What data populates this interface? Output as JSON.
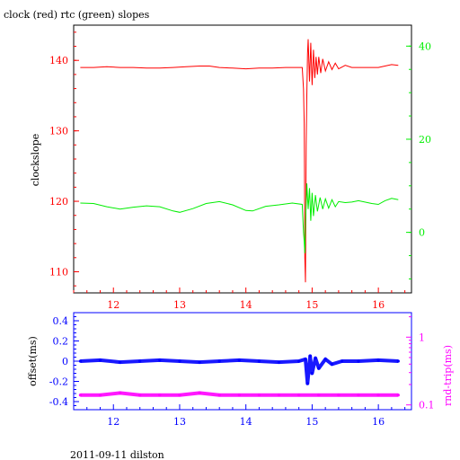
{
  "title": "clock (red) rtc (green) slopes",
  "footer": "2011-09-11 dilston",
  "colors": {
    "red": "#ff0000",
    "green": "#00ee00",
    "blue": "#0000ff",
    "magenta": "#ff00ff",
    "black": "#000000"
  },
  "chart_data": [
    {
      "type": "line",
      "title": "clock (red) rtc (green) slopes",
      "xlabel": "",
      "ylabel": "clockslope",
      "xlim": [
        11.4,
        16.5
      ],
      "x_ticks": [
        12,
        13,
        14,
        15,
        16
      ],
      "y_left": {
        "lim": [
          107,
          145
        ],
        "ticks": [
          110,
          120,
          130,
          140
        ],
        "color": "#ff0000"
      },
      "y_right": {
        "lim": [
          -13,
          44.5
        ],
        "ticks": [
          0,
          20,
          40
        ],
        "color": "#00ee00"
      },
      "series": [
        {
          "axis": "left",
          "color": "#ff0000",
          "points": [
            [
              11.5,
              139.0
            ],
            [
              11.7,
              139.0
            ],
            [
              11.9,
              139.1
            ],
            [
              12.1,
              139.0
            ],
            [
              12.3,
              139.0
            ],
            [
              12.5,
              138.9
            ],
            [
              12.7,
              138.9
            ],
            [
              12.9,
              139.0
            ],
            [
              13.1,
              139.1
            ],
            [
              13.3,
              139.2
            ],
            [
              13.45,
              139.2
            ],
            [
              13.6,
              139.0
            ],
            [
              13.8,
              138.9
            ],
            [
              14.0,
              138.8
            ],
            [
              14.2,
              138.9
            ],
            [
              14.4,
              138.9
            ],
            [
              14.6,
              139.0
            ],
            [
              14.8,
              139.0
            ],
            [
              14.85,
              139.0
            ],
            [
              14.87,
              136.0
            ],
            [
              14.88,
              131.0
            ],
            [
              14.885,
              125.0
            ],
            [
              14.89,
              112.0
            ],
            [
              14.9,
              108.5
            ],
            [
              14.905,
              118.0
            ],
            [
              14.91,
              128.0
            ],
            [
              14.92,
              135.0
            ],
            [
              14.93,
              141.0
            ],
            [
              14.94,
              143.0
            ],
            [
              14.96,
              137.0
            ],
            [
              14.98,
              142.5
            ],
            [
              15.0,
              136.5
            ],
            [
              15.02,
              141.5
            ],
            [
              15.04,
              137.5
            ],
            [
              15.06,
              140.5
            ],
            [
              15.08,
              138.0
            ],
            [
              15.1,
              140.5
            ],
            [
              15.13,
              138.2
            ],
            [
              15.16,
              140.2
            ],
            [
              15.2,
              138.5
            ],
            [
              15.25,
              139.8
            ],
            [
              15.3,
              138.7
            ],
            [
              15.35,
              139.6
            ],
            [
              15.4,
              138.8
            ],
            [
              15.5,
              139.3
            ],
            [
              15.6,
              139.0
            ],
            [
              15.8,
              139.0
            ],
            [
              16.0,
              139.0
            ],
            [
              16.1,
              139.2
            ],
            [
              16.2,
              139.4
            ],
            [
              16.3,
              139.3
            ]
          ]
        },
        {
          "axis": "right",
          "color": "#00ee00",
          "points": [
            [
              11.5,
              6.3
            ],
            [
              11.7,
              6.2
            ],
            [
              11.9,
              5.5
            ],
            [
              12.1,
              5.0
            ],
            [
              12.3,
              5.4
            ],
            [
              12.5,
              5.7
            ],
            [
              12.7,
              5.5
            ],
            [
              12.9,
              4.6
            ],
            [
              13.0,
              4.3
            ],
            [
              13.2,
              5.1
            ],
            [
              13.4,
              6.2
            ],
            [
              13.6,
              6.6
            ],
            [
              13.8,
              5.9
            ],
            [
              14.0,
              4.7
            ],
            [
              14.1,
              4.6
            ],
            [
              14.3,
              5.6
            ],
            [
              14.5,
              5.9
            ],
            [
              14.7,
              6.3
            ],
            [
              14.85,
              6.0
            ],
            [
              14.87,
              0.0
            ],
            [
              14.88,
              -2.0
            ],
            [
              14.89,
              -4.5
            ],
            [
              14.9,
              2.0
            ],
            [
              14.91,
              6.0
            ],
            [
              14.92,
              10.5
            ],
            [
              14.94,
              5.0
            ],
            [
              14.96,
              9.5
            ],
            [
              14.98,
              2.5
            ],
            [
              15.0,
              8.5
            ],
            [
              15.02,
              3.5
            ],
            [
              15.05,
              8.0
            ],
            [
              15.08,
              4.5
            ],
            [
              15.12,
              7.5
            ],
            [
              15.16,
              5.0
            ],
            [
              15.2,
              7.2
            ],
            [
              15.25,
              5.2
            ],
            [
              15.3,
              7.0
            ],
            [
              15.35,
              5.5
            ],
            [
              15.4,
              6.6
            ],
            [
              15.5,
              6.4
            ],
            [
              15.6,
              6.5
            ],
            [
              15.7,
              6.8
            ],
            [
              15.9,
              6.2
            ],
            [
              16.0,
              6.0
            ],
            [
              16.1,
              6.8
            ],
            [
              16.2,
              7.3
            ],
            [
              16.3,
              7.0
            ]
          ]
        }
      ]
    },
    {
      "type": "scatter",
      "xlabel": "",
      "ylabel": "offset(ms)",
      "xlim": [
        11.4,
        16.5
      ],
      "x_ticks": [
        12,
        13,
        14,
        15,
        16
      ],
      "y_left": {
        "lim": [
          -0.48,
          0.48
        ],
        "ticks": [
          -0.4,
          -0.2,
          0,
          0.2,
          0.4
        ],
        "color": "#0000ff"
      },
      "y_right": {
        "label": "rnd-trip(ms)",
        "scale": "log",
        "lim": [
          0.085,
          2.3
        ],
        "ticks": [
          0.1,
          1
        ],
        "color": "#ff00ff"
      },
      "series": [
        {
          "name": "offset(ms)",
          "axis": "left",
          "color": "#0000ff",
          "points": [
            [
              11.5,
              0.0
            ],
            [
              11.8,
              0.01
            ],
            [
              12.1,
              -0.01
            ],
            [
              12.4,
              0.0
            ],
            [
              12.7,
              0.01
            ],
            [
              13.0,
              0.0
            ],
            [
              13.3,
              -0.01
            ],
            [
              13.6,
              0.0
            ],
            [
              13.9,
              0.01
            ],
            [
              14.2,
              0.0
            ],
            [
              14.5,
              -0.01
            ],
            [
              14.8,
              0.0
            ],
            [
              14.9,
              0.02
            ],
            [
              14.93,
              -0.22
            ],
            [
              14.97,
              0.05
            ],
            [
              15.0,
              -0.12
            ],
            [
              15.05,
              0.03
            ],
            [
              15.1,
              -0.07
            ],
            [
              15.2,
              0.02
            ],
            [
              15.3,
              -0.03
            ],
            [
              15.45,
              0.0
            ],
            [
              15.7,
              0.0
            ],
            [
              16.0,
              0.01
            ],
            [
              16.3,
              0.0
            ]
          ]
        },
        {
          "name": "rnd-trip(ms)",
          "axis": "right",
          "color": "#ff00ff",
          "points": [
            [
              11.5,
              0.14
            ],
            [
              11.8,
              0.14
            ],
            [
              12.1,
              0.15
            ],
            [
              12.4,
              0.14
            ],
            [
              12.7,
              0.14
            ],
            [
              13.0,
              0.14
            ],
            [
              13.3,
              0.15
            ],
            [
              13.6,
              0.14
            ],
            [
              13.9,
              0.14
            ],
            [
              14.2,
              0.14
            ],
            [
              14.5,
              0.14
            ],
            [
              14.8,
              0.14
            ],
            [
              15.1,
              0.14
            ],
            [
              15.4,
              0.14
            ],
            [
              15.7,
              0.14
            ],
            [
              16.0,
              0.14
            ],
            [
              16.3,
              0.14
            ]
          ]
        }
      ]
    }
  ]
}
